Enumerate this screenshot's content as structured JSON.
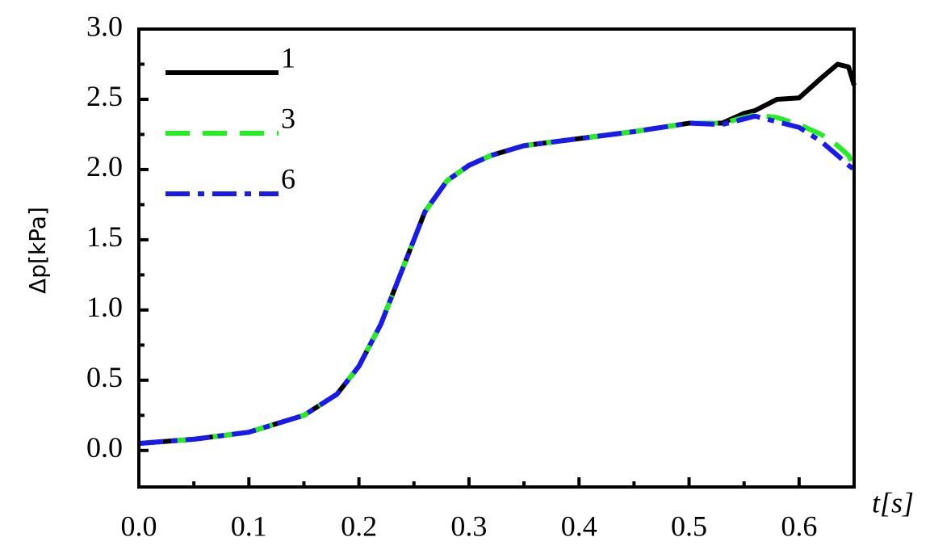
{
  "chart_data": {
    "type": "line",
    "xlabel": "t[s]",
    "ylabel": "Δp[kPa]",
    "x": [
      0,
      0.05,
      0.1,
      0.15,
      0.18,
      0.2,
      0.22,
      0.24,
      0.26,
      0.28,
      0.3,
      0.32,
      0.35,
      0.4,
      0.45,
      0.5,
      0.53,
      0.55,
      0.56,
      0.58,
      0.6,
      0.62,
      0.635,
      0.645,
      0.65
    ],
    "series": [
      {
        "name": "1",
        "color": "#000000",
        "dash": "solid",
        "values": [
          0.05,
          0.08,
          0.13,
          0.25,
          0.4,
          0.6,
          0.9,
          1.3,
          1.7,
          1.92,
          2.03,
          2.1,
          2.17,
          2.22,
          2.27,
          2.33,
          2.33,
          2.4,
          2.42,
          2.5,
          2.51,
          2.65,
          2.75,
          2.73,
          2.6
        ]
      },
      {
        "name": "3",
        "color": "#22ee22",
        "dash": "dashed",
        "values": [
          0.05,
          0.08,
          0.13,
          0.25,
          0.4,
          0.6,
          0.9,
          1.3,
          1.7,
          1.92,
          2.03,
          2.1,
          2.17,
          2.22,
          2.27,
          2.33,
          2.33,
          2.37,
          2.39,
          2.37,
          2.32,
          2.25,
          2.17,
          2.1,
          2.02
        ]
      },
      {
        "name": "6",
        "color": "#1a1aee",
        "dash": "dashdot",
        "values": [
          0.05,
          0.08,
          0.13,
          0.25,
          0.4,
          0.6,
          0.9,
          1.3,
          1.7,
          1.92,
          2.03,
          2.1,
          2.17,
          2.22,
          2.27,
          2.33,
          2.32,
          2.36,
          2.38,
          2.34,
          2.3,
          2.2,
          2.1,
          2.03,
          2.0
        ]
      }
    ],
    "xlim": [
      0,
      0.65
    ],
    "xticks": [
      {
        "value": 0,
        "label": "0.0"
      },
      0.1,
      0.2,
      0.3,
      0.4,
      0.5,
      0.6
    ],
    "ylim": [
      -0.26,
      3.0
    ],
    "yticks": [
      {
        "value": 0,
        "label": "0.0"
      },
      0.5,
      {
        "value": 1,
        "label": "1.0"
      },
      1.5,
      {
        "value": 2,
        "label": "2.0"
      },
      2.5,
      {
        "value": 3,
        "label": "3.0"
      }
    ],
    "legend": "upper left",
    "grid": false
  }
}
